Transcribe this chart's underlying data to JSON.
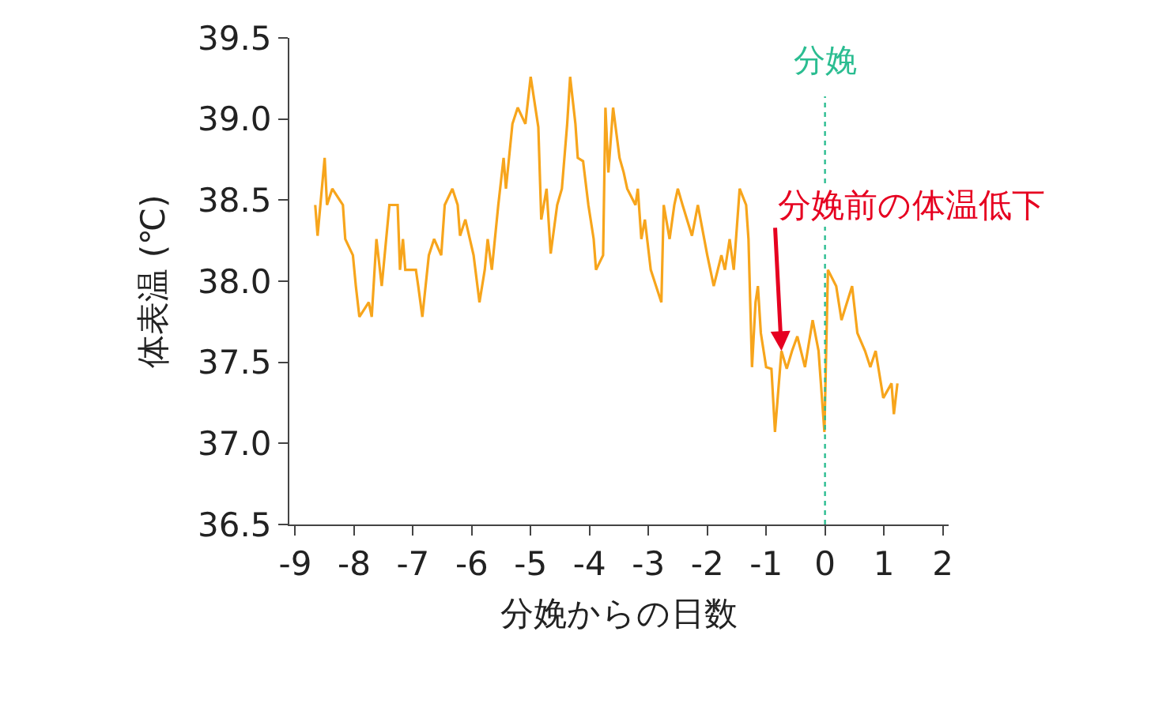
{
  "chart_data": {
    "type": "line",
    "xlabel": "分娩からの日数",
    "ylabel": "体表温 (℃)",
    "xlim": [
      -9.1,
      2.1
    ],
    "xticks": [
      -9,
      -8,
      -7,
      -6,
      -5,
      -4,
      -3,
      -2,
      -1,
      0,
      1,
      2
    ],
    "ylim": [
      36.5,
      39.5
    ],
    "yticks": [
      {
        "value": 36.5,
        "label": "36.5"
      },
      {
        "value": 37,
        "label": "37.0"
      },
      {
        "value": 37.5,
        "label": "37.5"
      },
      {
        "value": 38,
        "label": "38.0"
      },
      {
        "value": 38.5,
        "label": "38.5"
      },
      {
        "value": 39,
        "label": "39.0"
      },
      {
        "value": 39.5,
        "label": "39.5"
      }
    ],
    "marker": "none",
    "line_style": "solid",
    "series": [
      {
        "color": "#f7a51c",
        "x": [
          -8.66,
          -8.62,
          -8.5,
          -8.46,
          -8.37,
          -8.19,
          -8.15,
          -8.02,
          -7.97,
          -7.91,
          -7.75,
          -7.7,
          -7.62,
          -7.53,
          -7.4,
          -7.26,
          -7.22,
          -7.17,
          -7.13,
          -6.95,
          -6.91,
          -6.84,
          -6.73,
          -6.64,
          -6.52,
          -6.46,
          -6.33,
          -6.24,
          -6.2,
          -6.11,
          -5.97,
          -5.87,
          -5.78,
          -5.73,
          -5.66,
          -5.55,
          -5.46,
          -5.42,
          -5.31,
          -5.22,
          -5.09,
          -5.0,
          -4.87,
          -4.82,
          -4.73,
          -4.66,
          -4.55,
          -4.47,
          -4.38,
          -4.33,
          -4.24,
          -4.2,
          -4.11,
          -4.02,
          -3.93,
          -3.89,
          -3.77,
          -3.73,
          -3.68,
          -3.6,
          -3.49,
          -3.42,
          -3.36,
          -3.22,
          -3.18,
          -3.12,
          -3.06,
          -2.96,
          -2.87,
          -2.78,
          -2.74,
          -2.64,
          -2.56,
          -2.5,
          -2.42,
          -2.26,
          -2.16,
          -2.0,
          -1.89,
          -1.76,
          -1.7,
          -1.62,
          -1.55,
          -1.45,
          -1.34,
          -1.3,
          -1.24,
          -1.18,
          -1.14,
          -1.09,
          -1.0,
          -0.91,
          -0.85,
          -0.74,
          -0.65,
          -0.56,
          -0.47,
          -0.34,
          -0.21,
          -0.11,
          -0.01,
          0.05,
          0.19,
          0.28,
          0.46,
          0.55,
          0.68,
          0.77,
          0.86,
          0.99,
          1.13,
          1.17,
          1.23
        ],
        "values": [
          38.47,
          38.28,
          38.76,
          38.47,
          38.57,
          38.47,
          38.26,
          38.16,
          37.97,
          37.78,
          37.87,
          37.78,
          38.26,
          37.97,
          38.47,
          38.47,
          38.07,
          38.26,
          38.07,
          38.07,
          37.97,
          37.78,
          38.16,
          38.26,
          38.16,
          38.47,
          38.57,
          38.47,
          38.28,
          38.38,
          38.16,
          37.87,
          38.07,
          38.26,
          38.07,
          38.47,
          38.76,
          38.57,
          38.97,
          39.07,
          38.97,
          39.26,
          38.95,
          38.38,
          38.57,
          38.17,
          38.47,
          38.57,
          38.97,
          39.26,
          38.97,
          38.76,
          38.74,
          38.47,
          38.26,
          38.07,
          38.16,
          39.07,
          38.67,
          39.07,
          38.76,
          38.67,
          38.57,
          38.47,
          38.57,
          38.26,
          38.38,
          38.07,
          37.97,
          37.87,
          38.47,
          38.26,
          38.47,
          38.57,
          38.47,
          38.28,
          38.47,
          38.16,
          37.97,
          38.16,
          38.07,
          38.26,
          38.07,
          38.57,
          38.47,
          38.26,
          37.47,
          37.87,
          37.97,
          37.68,
          37.47,
          37.46,
          37.07,
          37.57,
          37.46,
          37.57,
          37.66,
          37.47,
          37.76,
          37.57,
          37.07,
          38.07,
          37.97,
          37.76,
          37.97,
          37.68,
          37.57,
          37.47,
          37.57,
          37.28,
          37.37,
          37.18,
          37.37
        ]
      }
    ],
    "ref_lines": [
      {
        "axis": "x",
        "value": 0,
        "label": "分娩",
        "color": "#2bbd91",
        "line_style": "dotted"
      }
    ],
    "annotations": [
      {
        "text": "分娩前の体温低下",
        "x": -0.74,
        "y": 37.57
      }
    ]
  }
}
